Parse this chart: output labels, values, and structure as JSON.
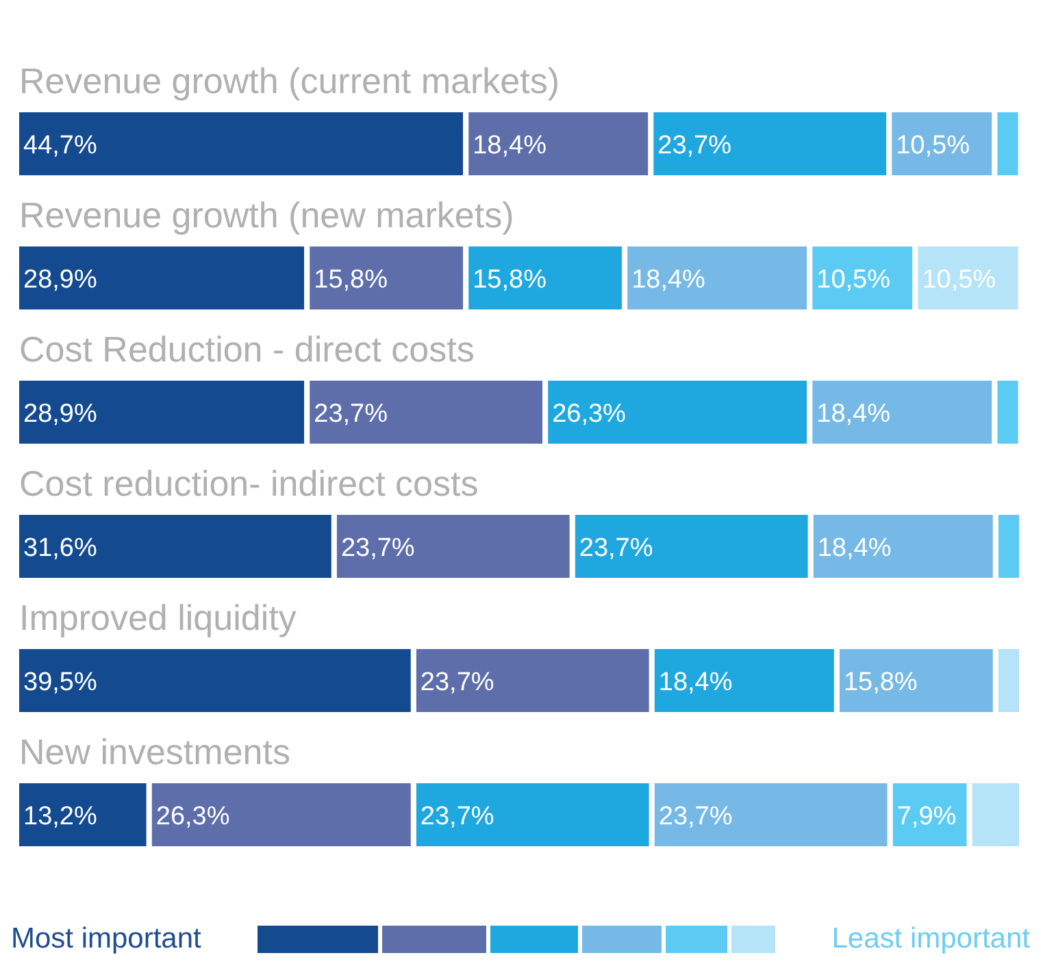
{
  "chart_data": {
    "type": "bar",
    "orientation": "horizontal",
    "stacked": true,
    "categories": [
      "Revenue growth (current markets)",
      "Revenue growth (new markets)",
      "Cost Reduction - direct costs",
      "Cost reduction- indirect costs",
      "Improved liquidity",
      "New investments"
    ],
    "series": [
      {
        "color": "#144a8f",
        "values": [
          44.7,
          28.9,
          28.9,
          31.6,
          39.5,
          13.2
        ],
        "value_labels": [
          "44,7%",
          "28,9%",
          "28,9%",
          "31,6%",
          "39,5%",
          "13,2%"
        ]
      },
      {
        "color": "#5e6eab",
        "values": [
          18.4,
          15.8,
          23.7,
          23.7,
          23.7,
          26.3
        ],
        "value_labels": [
          "18,4%",
          "15,8%",
          "23,7%",
          "23,7%",
          "23,7%",
          "26,3%"
        ]
      },
      {
        "color": "#1fa8e0",
        "values": [
          23.7,
          15.8,
          26.3,
          23.7,
          18.4,
          23.7
        ],
        "value_labels": [
          "23,7%",
          "15,8%",
          "26,3%",
          "23,7%",
          "18,4%",
          "23,7%"
        ]
      },
      {
        "color": "#76b9e6",
        "values": [
          10.5,
          18.4,
          18.4,
          18.4,
          15.8,
          23.7
        ],
        "value_labels": [
          "10,5%",
          "18,4%",
          "18,4%",
          "18,4%",
          "15,8%",
          "23,7%"
        ]
      },
      {
        "color": "#5ccbf3",
        "values": [
          2.6,
          10.5,
          2.6,
          2.6,
          0,
          7.9
        ],
        "value_labels": [
          null,
          "10,5%",
          null,
          null,
          null,
          "7,9%"
        ]
      },
      {
        "color": "#b5e3f8",
        "values": [
          0,
          10.5,
          0,
          0,
          2.6,
          5.2
        ],
        "value_labels": [
          null,
          "10,5%",
          null,
          null,
          null,
          null
        ]
      }
    ],
    "xlim": [
      0,
      100
    ],
    "tick_labels": false,
    "annotations": [
      "Most important",
      "Least important"
    ]
  }
}
